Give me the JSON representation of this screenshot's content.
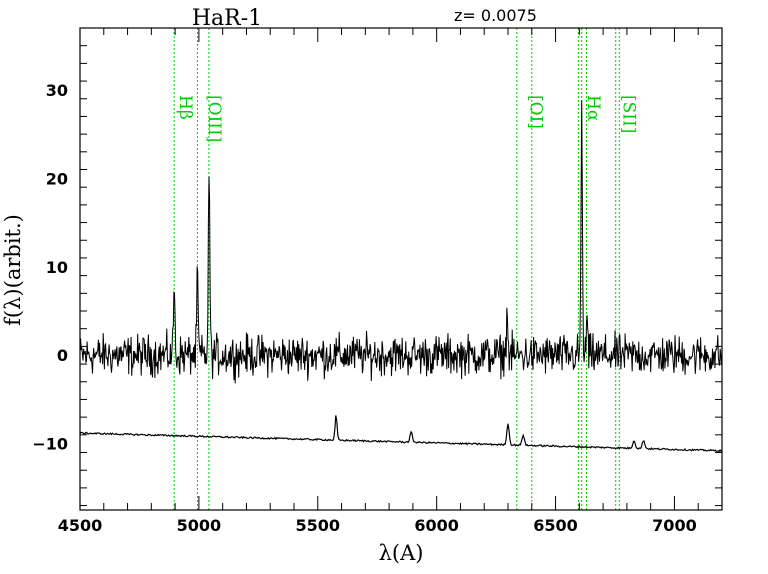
{
  "chart_data": {
    "type": "line",
    "title": "HaR-1",
    "annotation": "z=  0.0075",
    "xlabel": "λ(A)",
    "ylabel": "f(λ)(arbit.)",
    "xlim": [
      4500,
      7200
    ],
    "ylim": [
      -17.5,
      37
    ],
    "x_ticks": [
      4500,
      5000,
      5500,
      6000,
      6500,
      7000
    ],
    "x_tick_labels": [
      "4500",
      "5000",
      "5500",
      "6000",
      "6500",
      "7000"
    ],
    "y_ticks": [
      -10,
      0,
      10,
      20,
      30
    ],
    "y_tick_labels": [
      "−10",
      "0",
      "10",
      "20",
      "30"
    ],
    "grid": false,
    "line_markers": [
      {
        "label": "Hβ",
        "lines": [
          4896
        ]
      },
      {
        "label": "[OIII]",
        "lines": [
          4994,
          5042
        ]
      },
      {
        "label": "[OI]",
        "lines": [
          6337,
          6400
        ]
      },
      {
        "label": "Hα",
        "lines": [
          6596,
          6610,
          6630
        ]
      },
      {
        "label": "[SII]",
        "lines": [
          6753,
          6768
        ]
      }
    ],
    "series": [
      {
        "style": "noisy",
        "baseline": 0,
        "noise_amplitude": 1.4,
        "peaks": [
          {
            "x": 4896,
            "y": 8,
            "width": 3
          },
          {
            "x": 4994,
            "y": 9,
            "width": 3
          },
          {
            "x": 5043,
            "y": 21.5,
            "width": 3
          },
          {
            "x": 6296,
            "y": 5,
            "width": 3
          },
          {
            "x": 6610,
            "y": 27,
            "width": 3
          },
          {
            "x": 6632,
            "y": 4,
            "width": 3
          }
        ]
      },
      {
        "style": "smooth",
        "start": [
          4500,
          -8.8
        ],
        "end": [
          7200,
          -10.8
        ],
        "peaks": [
          {
            "x": 5577,
            "y": -6.8,
            "width": 4
          },
          {
            "x": 5893,
            "y": -8.7,
            "width": 5
          },
          {
            "x": 6300,
            "y": -7.8,
            "width": 5
          },
          {
            "x": 6364,
            "y": -9.0,
            "width": 5
          },
          {
            "x": 6830,
            "y": -9.6,
            "width": 5
          },
          {
            "x": 6870,
            "y": -9.6,
            "width": 5
          }
        ]
      }
    ]
  }
}
